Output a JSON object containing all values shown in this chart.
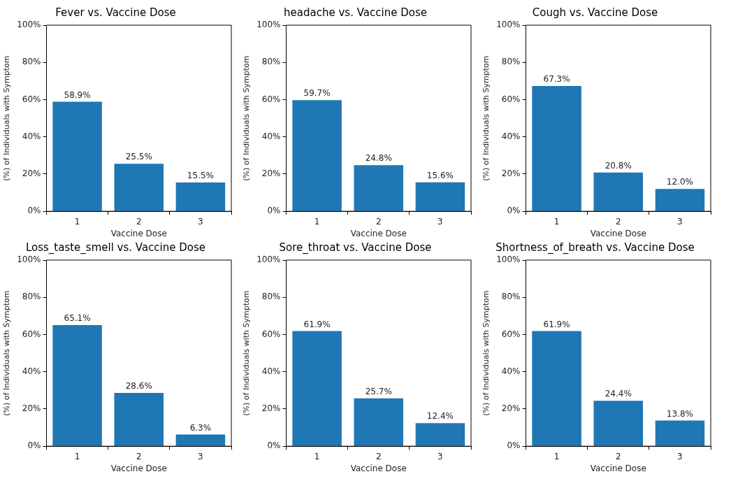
{
  "chart_data": [
    {
      "type": "bar",
      "title": "Fever vs. Vaccine Dose",
      "xlabel": "Vaccine Dose",
      "ylabel": "(%) of Individuals with Symptom",
      "categories": [
        "1",
        "2",
        "3"
      ],
      "values": [
        58.9,
        25.5,
        15.5
      ],
      "value_labels": [
        "58.9%",
        "25.5%",
        "15.5%"
      ],
      "color": "#1f77b4",
      "ylim": [
        0,
        100
      ],
      "yticks": [
        {
          "value": 0,
          "label": "0%"
        },
        {
          "value": 20,
          "label": "20%"
        },
        {
          "value": 40,
          "label": "40%"
        },
        {
          "value": 60,
          "label": "60%"
        },
        {
          "value": 80,
          "label": "80%"
        },
        {
          "value": 100,
          "label": "100%"
        }
      ]
    },
    {
      "type": "bar",
      "title": "headache vs. Vaccine Dose",
      "xlabel": "Vaccine Dose",
      "ylabel": "(%) of Individuals with Symptom",
      "categories": [
        "1",
        "2",
        "3"
      ],
      "values": [
        59.7,
        24.8,
        15.6
      ],
      "value_labels": [
        "59.7%",
        "24.8%",
        "15.6%"
      ],
      "color": "#1f77b4",
      "ylim": [
        0,
        100
      ],
      "yticks": [
        {
          "value": 0,
          "label": "0%"
        },
        {
          "value": 20,
          "label": "20%"
        },
        {
          "value": 40,
          "label": "40%"
        },
        {
          "value": 60,
          "label": "60%"
        },
        {
          "value": 80,
          "label": "80%"
        },
        {
          "value": 100,
          "label": "100%"
        }
      ]
    },
    {
      "type": "bar",
      "title": "Cough vs. Vaccine Dose",
      "xlabel": "Vaccine Dose",
      "ylabel": "(%) of Individuals with Symptom",
      "categories": [
        "1",
        "2",
        "3"
      ],
      "values": [
        67.3,
        20.8,
        12.0
      ],
      "value_labels": [
        "67.3%",
        "20.8%",
        "12.0%"
      ],
      "color": "#1f77b4",
      "ylim": [
        0,
        100
      ],
      "yticks": [
        {
          "value": 0,
          "label": "0%"
        },
        {
          "value": 20,
          "label": "20%"
        },
        {
          "value": 40,
          "label": "40%"
        },
        {
          "value": 60,
          "label": "60%"
        },
        {
          "value": 80,
          "label": "80%"
        },
        {
          "value": 100,
          "label": "100%"
        }
      ]
    },
    {
      "type": "bar",
      "title": "Loss_taste_smell vs. Vaccine Dose",
      "xlabel": "Vaccine Dose",
      "ylabel": "(%) of Individuals with Symptom",
      "categories": [
        "1",
        "2",
        "3"
      ],
      "values": [
        65.1,
        28.6,
        6.3
      ],
      "value_labels": [
        "65.1%",
        "28.6%",
        "6.3%"
      ],
      "color": "#1f77b4",
      "ylim": [
        0,
        100
      ],
      "yticks": [
        {
          "value": 0,
          "label": "0%"
        },
        {
          "value": 20,
          "label": "20%"
        },
        {
          "value": 40,
          "label": "40%"
        },
        {
          "value": 60,
          "label": "60%"
        },
        {
          "value": 80,
          "label": "80%"
        },
        {
          "value": 100,
          "label": "100%"
        }
      ]
    },
    {
      "type": "bar",
      "title": "Sore_throat vs. Vaccine Dose",
      "xlabel": "Vaccine Dose",
      "ylabel": "(%) of Individuals with Symptom",
      "categories": [
        "1",
        "2",
        "3"
      ],
      "values": [
        61.9,
        25.7,
        12.4
      ],
      "value_labels": [
        "61.9%",
        "25.7%",
        "12.4%"
      ],
      "color": "#1f77b4",
      "ylim": [
        0,
        100
      ],
      "yticks": [
        {
          "value": 0,
          "label": "0%"
        },
        {
          "value": 20,
          "label": "20%"
        },
        {
          "value": 40,
          "label": "40%"
        },
        {
          "value": 60,
          "label": "60%"
        },
        {
          "value": 80,
          "label": "80%"
        },
        {
          "value": 100,
          "label": "100%"
        }
      ]
    },
    {
      "type": "bar",
      "title": "Shortness_of_breath vs. Vaccine Dose",
      "xlabel": "Vaccine Dose",
      "ylabel": "(%) of Individuals with Symptom",
      "categories": [
        "1",
        "2",
        "3"
      ],
      "values": [
        61.9,
        24.4,
        13.8
      ],
      "value_labels": [
        "61.9%",
        "24.4%",
        "13.8%"
      ],
      "color": "#1f77b4",
      "ylim": [
        0,
        100
      ],
      "yticks": [
        {
          "value": 0,
          "label": "0%"
        },
        {
          "value": 20,
          "label": "20%"
        },
        {
          "value": 40,
          "label": "40%"
        },
        {
          "value": 60,
          "label": "60%"
        },
        {
          "value": 80,
          "label": "80%"
        },
        {
          "value": 100,
          "label": "100%"
        }
      ]
    }
  ]
}
